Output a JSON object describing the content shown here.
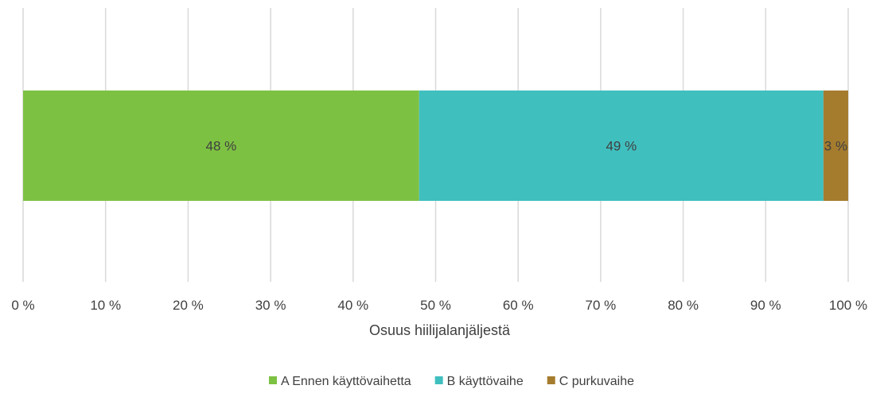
{
  "chart_data": {
    "type": "bar",
    "orientation": "horizontal",
    "stacked": true,
    "categories": [
      ""
    ],
    "series": [
      {
        "name": "A Ennen käyttövaihetta",
        "values": [
          48
        ],
        "label": "48 %",
        "color": "#7dc142"
      },
      {
        "name": "B käyttövaihe",
        "values": [
          49
        ],
        "label": "49 %",
        "color": "#40bfbf"
      },
      {
        "name": "C purkuvaihe",
        "values": [
          3
        ],
        "label": "3 %",
        "color": "#a57c2e"
      }
    ],
    "xlabel": "Osuus hiilijalanjäljestä",
    "xlim": [
      0,
      100
    ],
    "xticks": [
      "0 %",
      "10 %",
      "20 %",
      "30 %",
      "40 %",
      "50 %",
      "60 %",
      "70 %",
      "80 %",
      "90 %",
      "100 %"
    ],
    "grid": true,
    "legend": "bottom"
  }
}
